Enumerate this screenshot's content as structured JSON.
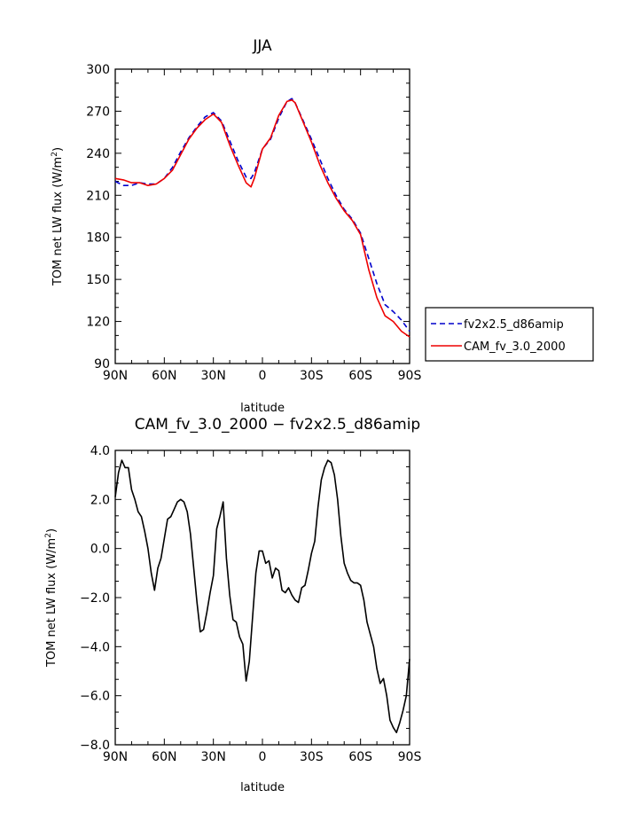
{
  "chart_data": [
    {
      "type": "line",
      "title": "JJA",
      "xlabel": "latitude",
      "ylabel": "TOM net LW flux (W/m",
      "ylabel_sup": "2",
      "ylabel_end": ")",
      "xlim": [
        90,
        -90
      ],
      "ylim": [
        90,
        300
      ],
      "x_ticks": [
        90,
        60,
        30,
        0,
        -30,
        -60,
        -90
      ],
      "x_tick_labels": [
        "90N",
        "60N",
        "30N",
        "0",
        "30S",
        "60S",
        "90S"
      ],
      "y_ticks": [
        90,
        120,
        150,
        180,
        210,
        240,
        270,
        300
      ],
      "y_tick_labels": [
        "90",
        "120",
        "150",
        "180",
        "210",
        "240",
        "270",
        "300"
      ],
      "grid": false,
      "legend_position": "right",
      "series": [
        {
          "name": "fv2x2.5_d86amip",
          "color": "#0000cc",
          "dash": "dashed",
          "x": [
            90,
            85,
            80,
            75,
            70,
            65,
            60,
            55,
            50,
            45,
            40,
            35,
            30,
            25,
            20,
            15,
            10,
            7,
            5,
            0,
            -5,
            -10,
            -15,
            -18,
            -20,
            -25,
            -30,
            -35,
            -40,
            -45,
            -50,
            -55,
            -60,
            -65,
            -70,
            -75,
            -80,
            -85,
            -90
          ],
          "y": [
            220,
            217,
            217,
            219,
            218,
            218,
            222,
            230,
            241,
            251,
            259,
            266,
            269,
            263,
            249,
            235,
            223,
            222,
            226,
            243,
            250,
            265,
            277,
            279,
            276,
            263,
            250,
            236,
            222,
            210,
            200,
            193,
            183,
            165,
            147,
            132,
            127,
            121,
            113
          ]
        },
        {
          "name": "CAM_fv_3.0_2000",
          "color": "#ee0000",
          "dash": "solid",
          "x": [
            90,
            85,
            80,
            75,
            70,
            65,
            60,
            55,
            50,
            45,
            40,
            35,
            30,
            25,
            20,
            15,
            10,
            7,
            5,
            0,
            -5,
            -10,
            -15,
            -18,
            -20,
            -25,
            -30,
            -35,
            -40,
            -45,
            -50,
            -55,
            -60,
            -65,
            -70,
            -75,
            -80,
            -85,
            -90
          ],
          "y": [
            222,
            221,
            219,
            219,
            217,
            218,
            222,
            228,
            239,
            250,
            258,
            264,
            268,
            262,
            246,
            232,
            219,
            216,
            222,
            243,
            251,
            267,
            277,
            278,
            276,
            262,
            248,
            232,
            219,
            208,
            199,
            192,
            182,
            157,
            137,
            124,
            120,
            113,
            109
          ]
        }
      ]
    },
    {
      "type": "line",
      "title": "CAM_fv_3.0_2000 − fv2x2.5_d86amip",
      "xlabel": "latitude",
      "ylabel": "TOM net LW flux (W/m",
      "ylabel_sup": "2",
      "ylabel_end": ")",
      "xlim": [
        90,
        -90
      ],
      "ylim": [
        -8,
        4
      ],
      "x_ticks": [
        90,
        60,
        30,
        0,
        -30,
        -60,
        -90
      ],
      "x_tick_labels": [
        "90N",
        "60N",
        "30N",
        "0",
        "30S",
        "60S",
        "90S"
      ],
      "y_ticks": [
        -8,
        -6,
        -4,
        -2,
        0,
        2,
        4
      ],
      "y_tick_labels": [
        "−8.0",
        "−6.0",
        "−4.0",
        "−2.0",
        "0.0",
        "2.0",
        "4.0"
      ],
      "grid": false,
      "series": [
        {
          "color": "#000000",
          "dash": "solid",
          "x": [
            90,
            88,
            86,
            84,
            82,
            80,
            78,
            76,
            74,
            72,
            70,
            68,
            66,
            64,
            62,
            60,
            58,
            56,
            54,
            52,
            50,
            48,
            46,
            44,
            42,
            40,
            38,
            36,
            34,
            32,
            30,
            28,
            26,
            24,
            22,
            20,
            18,
            16,
            14,
            12,
            10,
            8,
            6,
            4,
            2,
            0,
            -2,
            -4,
            -6,
            -8,
            -10,
            -12,
            -14,
            -16,
            -18,
            -20,
            -22,
            -24,
            -26,
            -28,
            -30,
            -32,
            -34,
            -36,
            -38,
            -40,
            -42,
            -44,
            -46,
            -48,
            -50,
            -52,
            -54,
            -56,
            -58,
            -60,
            -62,
            -64,
            -66,
            -68,
            -70,
            -72,
            -74,
            -76,
            -78,
            -80,
            -82,
            -84,
            -86,
            -88,
            -90
          ],
          "y": [
            2.1,
            3.1,
            3.6,
            3.3,
            3.3,
            2.4,
            2.0,
            1.5,
            1.3,
            0.7,
            0.0,
            -1.0,
            -1.7,
            -0.8,
            -0.4,
            0.4,
            1.2,
            1.3,
            1.6,
            1.9,
            2.0,
            1.9,
            1.5,
            0.6,
            -0.8,
            -2.2,
            -3.4,
            -3.3,
            -2.6,
            -1.8,
            -1.1,
            0.8,
            1.3,
            1.9,
            -0.4,
            -1.9,
            -2.9,
            -3.0,
            -3.6,
            -3.9,
            -5.4,
            -4.6,
            -2.8,
            -1.0,
            -0.1,
            -0.1,
            -0.6,
            -0.5,
            -1.2,
            -0.8,
            -0.9,
            -1.7,
            -1.8,
            -1.6,
            -1.9,
            -2.1,
            -2.2,
            -1.6,
            -1.5,
            -0.9,
            -0.2,
            0.3,
            1.7,
            2.8,
            3.3,
            3.6,
            3.5,
            3.0,
            2.0,
            0.5,
            -0.6,
            -1.0,
            -1.3,
            -1.4,
            -1.4,
            -1.5,
            -2.1,
            -3.0,
            -3.5,
            -4.0,
            -4.9,
            -5.5,
            -5.3,
            -6.0,
            -7.0,
            -7.3,
            -7.5,
            -7.1,
            -6.6,
            -6.0,
            -4.5
          ]
        }
      ]
    }
  ]
}
